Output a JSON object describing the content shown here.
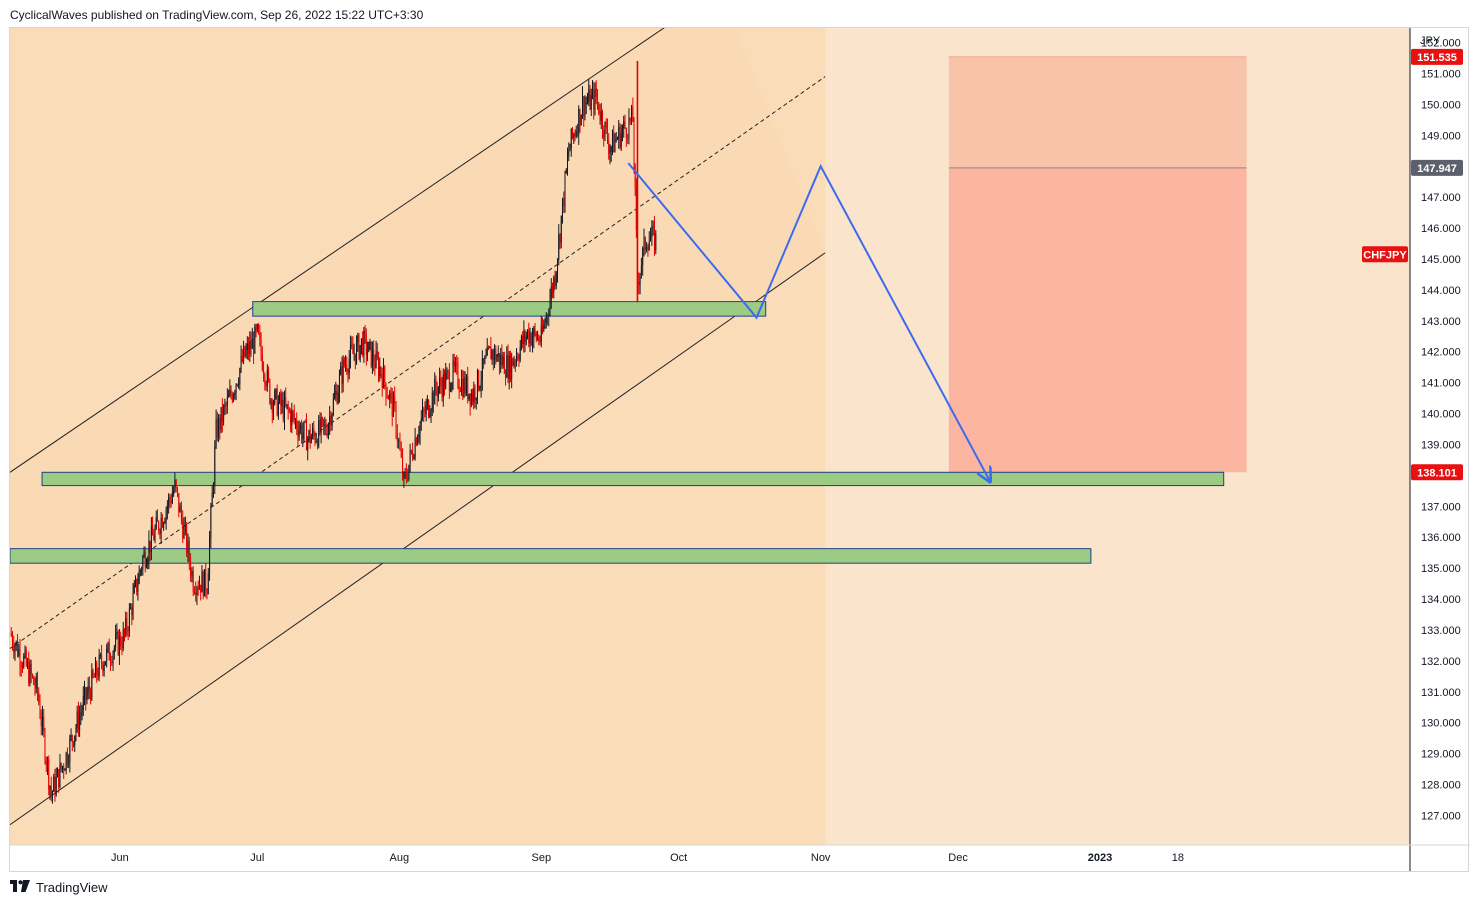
{
  "header": {
    "publisher_text": "CyclicalWaves published on TradingView.com, Sep 26, 2022 15:22 UTC+3:30"
  },
  "footer": {
    "logo_icon": "tradingview-logo-icon",
    "brand_text": "TradingView"
  },
  "colors": {
    "background": "#fbe4cc",
    "channel_fill": "#fad9b3",
    "shaded_region": "#f9d5a8",
    "zone_fill": "#9ccc84",
    "zone_border": "#1e3f8c",
    "bull_candle": "#131722",
    "bear_candle": "#e00000",
    "projection_line": "#3d6af0",
    "stop_zone": "#f8c3a8",
    "target_zone": "#fbb5a0",
    "price_red": "#e81010",
    "price_gray": "#5d606b"
  },
  "chart_data": {
    "type": "candlestick",
    "symbol": "CHFJPY",
    "currency": "JPY",
    "y_axis": {
      "ticks": [
        "127.000",
        "128.000",
        "129.000",
        "130.000",
        "131.000",
        "132.000",
        "133.000",
        "134.000",
        "135.000",
        "136.000",
        "137.000",
        "138.000",
        "139.000",
        "140.000",
        "141.000",
        "142.000",
        "143.000",
        "144.000",
        "145.000",
        "146.000",
        "147.000",
        "148.000",
        "149.000",
        "150.000",
        "151.000",
        "152.000"
      ],
      "range": [
        126.4,
        153.3
      ]
    },
    "x_axis": {
      "ticks": [
        "Jun",
        "Jul",
        "Aug",
        "Sep",
        "Oct",
        "Nov",
        "Dec",
        "2023",
        "18"
      ]
    },
    "price_labels": {
      "upper": "151.535",
      "middle": "147.947",
      "lower": "138.101",
      "symbol_tag": "CHFJPY"
    },
    "channel": {
      "upper": [
        {
          "date": "2022-05-08",
          "value": 138.1
        },
        {
          "date": "2022-10-10",
          "value": 153.7
        }
      ],
      "lower": [
        {
          "date": "2022-05-08",
          "value": 126.7
        },
        {
          "date": "2022-11-02",
          "value": 145.2
        }
      ],
      "midline": [
        {
          "date": "2022-05-08",
          "value": 132.4
        },
        {
          "date": "2022-11-02",
          "value": 150.9
        }
      ]
    },
    "zones": [
      {
        "from": "2022-06-30",
        "to": "2022-10-20",
        "low": 143.15,
        "high": 143.62
      },
      {
        "from": "2022-05-15",
        "to": "2023-01-28",
        "low": 137.67,
        "high": 138.1
      },
      {
        "from": "2022-05-08",
        "to": "2022-12-30",
        "low": 135.16,
        "high": 135.63
      }
    ],
    "projection_path": [
      {
        "date": "2022-09-20",
        "value": 148.1
      },
      {
        "date": "2022-10-18",
        "value": 143.1
      },
      {
        "date": "2022-11-01",
        "value": 148.0
      },
      {
        "date": "2022-12-08",
        "value": 137.8
      }
    ],
    "risk_box": {
      "from": "2022-11-29",
      "to": "2023-02-02",
      "top": 151.535,
      "entry": 147.947,
      "bottom": 138.101
    },
    "price_path": [
      {
        "date": "2022-05-08",
        "value": 132.9
      },
      {
        "date": "2022-05-11",
        "value": 132.0
      },
      {
        "date": "2022-05-14",
        "value": 131.0
      },
      {
        "date": "2022-05-17",
        "value": 127.7
      },
      {
        "date": "2022-05-20",
        "value": 128.8
      },
      {
        "date": "2022-05-24",
        "value": 130.6
      },
      {
        "date": "2022-05-28",
        "value": 132.0
      },
      {
        "date": "2022-06-02",
        "value": 132.8
      },
      {
        "date": "2022-06-06",
        "value": 135.3
      },
      {
        "date": "2022-06-10",
        "value": 136.6
      },
      {
        "date": "2022-06-13",
        "value": 137.6
      },
      {
        "date": "2022-06-15",
        "value": 136.2
      },
      {
        "date": "2022-06-17",
        "value": 134.6
      },
      {
        "date": "2022-06-20",
        "value": 134.5
      },
      {
        "date": "2022-06-22",
        "value": 139.4
      },
      {
        "date": "2022-06-25",
        "value": 140.5
      },
      {
        "date": "2022-06-28",
        "value": 141.8
      },
      {
        "date": "2022-07-01",
        "value": 142.5
      },
      {
        "date": "2022-07-04",
        "value": 140.5
      },
      {
        "date": "2022-07-08",
        "value": 140.0
      },
      {
        "date": "2022-07-12",
        "value": 139.2
      },
      {
        "date": "2022-07-16",
        "value": 139.5
      },
      {
        "date": "2022-07-20",
        "value": 141.6
      },
      {
        "date": "2022-07-24",
        "value": 142.3
      },
      {
        "date": "2022-07-28",
        "value": 141.4
      },
      {
        "date": "2022-07-31",
        "value": 140.0
      },
      {
        "date": "2022-08-02",
        "value": 137.7
      },
      {
        "date": "2022-08-05",
        "value": 139.5
      },
      {
        "date": "2022-08-09",
        "value": 140.8
      },
      {
        "date": "2022-08-13",
        "value": 141.3
      },
      {
        "date": "2022-08-17",
        "value": 140.6
      },
      {
        "date": "2022-08-21",
        "value": 142.0
      },
      {
        "date": "2022-08-25",
        "value": 141.5
      },
      {
        "date": "2022-08-29",
        "value": 142.6
      },
      {
        "date": "2022-09-01",
        "value": 142.4
      },
      {
        "date": "2022-09-04",
        "value": 144.5
      },
      {
        "date": "2022-09-07",
        "value": 148.5
      },
      {
        "date": "2022-09-10",
        "value": 150.0
      },
      {
        "date": "2022-09-13",
        "value": 150.2
      },
      {
        "date": "2022-09-16",
        "value": 148.6
      },
      {
        "date": "2022-09-19",
        "value": 149.2
      },
      {
        "date": "2022-09-21",
        "value": 149.5
      },
      {
        "date": "2022-09-22",
        "value": 144.3
      },
      {
        "date": "2022-09-24",
        "value": 145.7
      },
      {
        "date": "2022-09-26",
        "value": 145.6
      }
    ]
  }
}
